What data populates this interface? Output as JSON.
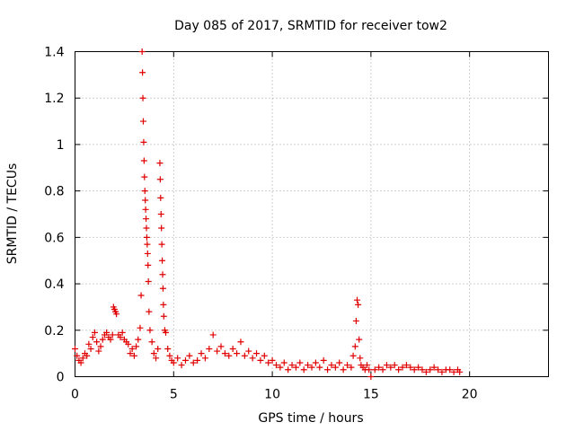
{
  "chart_data": {
    "type": "scatter",
    "title": "Day 085 of 2017, SRMTID for receiver tow2",
    "xlabel": "GPS time / hours",
    "ylabel": "SRMTID / TECUs",
    "xlim": [
      0,
      24
    ],
    "ylim": [
      0,
      1.4
    ],
    "x_ticks": [
      0,
      5,
      10,
      15,
      20
    ],
    "x_tick_labels": [
      "0",
      "5",
      "10",
      "15",
      "20"
    ],
    "y_ticks": [
      0,
      0.2,
      0.4,
      0.6,
      0.8,
      1.0,
      1.2,
      1.4
    ],
    "y_tick_labels": [
      "0",
      "0.2",
      "0.4",
      "0.6",
      "0.8",
      "1",
      "1.2",
      "1.4"
    ],
    "grid": true,
    "marker": "+",
    "series": [
      {
        "name": "SRMTID",
        "color": "#e00000",
        "x": [
          0.0,
          0.1,
          0.2,
          0.3,
          0.4,
          0.5,
          0.6,
          0.7,
          0.8,
          0.9,
          1.0,
          1.1,
          1.2,
          1.3,
          1.4,
          1.5,
          1.6,
          1.7,
          1.8,
          1.9,
          1.95,
          2.0,
          2.05,
          2.1,
          2.2,
          2.3,
          2.4,
          2.5,
          2.6,
          2.7,
          2.8,
          2.9,
          3.0,
          3.1,
          3.2,
          3.3,
          3.35,
          3.4,
          3.42,
          3.44,
          3.46,
          3.48,
          3.5,
          3.52,
          3.54,
          3.56,
          3.58,
          3.6,
          3.62,
          3.64,
          3.66,
          3.68,
          3.7,
          3.72,
          3.75,
          3.8,
          3.9,
          4.0,
          4.1,
          4.2,
          4.3,
          4.32,
          4.34,
          4.36,
          4.38,
          4.4,
          4.42,
          4.44,
          4.46,
          4.48,
          4.5,
          4.55,
          4.6,
          4.7,
          4.8,
          4.9,
          5.0,
          5.2,
          5.4,
          5.6,
          5.8,
          6.0,
          6.2,
          6.4,
          6.6,
          6.8,
          7.0,
          7.2,
          7.4,
          7.6,
          7.8,
          8.0,
          8.2,
          8.4,
          8.6,
          8.8,
          9.0,
          9.2,
          9.4,
          9.6,
          9.8,
          10.0,
          10.2,
          10.4,
          10.6,
          10.8,
          11.0,
          11.2,
          11.4,
          11.6,
          11.8,
          12.0,
          12.2,
          12.4,
          12.6,
          12.8,
          13.0,
          13.2,
          13.4,
          13.6,
          13.8,
          14.0,
          14.1,
          14.2,
          14.25,
          14.3,
          14.35,
          14.4,
          14.45,
          14.5,
          14.6,
          14.7,
          14.8,
          14.9,
          15.0,
          15.2,
          15.4,
          15.6,
          15.8,
          16.0,
          16.2,
          16.4,
          16.6,
          16.8,
          17.0,
          17.2,
          17.4,
          17.6,
          17.8,
          18.0,
          18.2,
          18.4,
          18.6,
          18.8,
          19.0,
          19.2,
          19.4,
          19.5
        ],
        "y": [
          0.12,
          0.09,
          0.07,
          0.06,
          0.08,
          0.1,
          0.09,
          0.14,
          0.12,
          0.17,
          0.19,
          0.15,
          0.11,
          0.13,
          0.16,
          0.18,
          0.19,
          0.17,
          0.16,
          0.18,
          0.3,
          0.29,
          0.28,
          0.27,
          0.18,
          0.17,
          0.19,
          0.16,
          0.15,
          0.14,
          0.1,
          0.12,
          0.09,
          0.13,
          0.16,
          0.21,
          0.35,
          1.4,
          1.31,
          1.2,
          1.1,
          1.01,
          0.93,
          0.86,
          0.8,
          0.76,
          0.72,
          0.68,
          0.64,
          0.6,
          0.57,
          0.53,
          0.48,
          0.41,
          0.28,
          0.2,
          0.15,
          0.1,
          0.08,
          0.12,
          0.92,
          0.85,
          0.77,
          0.7,
          0.64,
          0.57,
          0.5,
          0.44,
          0.38,
          0.31,
          0.26,
          0.2,
          0.19,
          0.12,
          0.09,
          0.07,
          0.06,
          0.08,
          0.05,
          0.07,
          0.09,
          0.06,
          0.07,
          0.1,
          0.08,
          0.12,
          0.18,
          0.11,
          0.13,
          0.1,
          0.09,
          0.12,
          0.1,
          0.15,
          0.09,
          0.11,
          0.08,
          0.1,
          0.07,
          0.09,
          0.06,
          0.07,
          0.05,
          0.04,
          0.06,
          0.03,
          0.05,
          0.04,
          0.06,
          0.03,
          0.05,
          0.04,
          0.06,
          0.04,
          0.07,
          0.03,
          0.05,
          0.04,
          0.06,
          0.03,
          0.05,
          0.04,
          0.09,
          0.13,
          0.24,
          0.33,
          0.31,
          0.16,
          0.08,
          0.05,
          0.04,
          0.03,
          0.05,
          0.03,
          0.0,
          0.03,
          0.04,
          0.03,
          0.05,
          0.04,
          0.05,
          0.03,
          0.04,
          0.05,
          0.04,
          0.03,
          0.04,
          0.03,
          0.02,
          0.03,
          0.04,
          0.03,
          0.02,
          0.03,
          0.03,
          0.02,
          0.03,
          0.02
        ]
      }
    ]
  }
}
